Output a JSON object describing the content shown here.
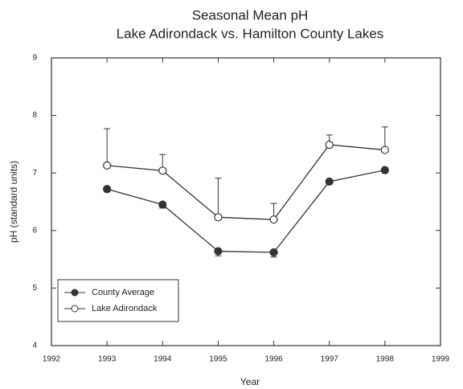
{
  "chart_data": {
    "type": "line",
    "title": "Seasonal Mean pH",
    "subtitle": "Lake Adirondack vs. Hamilton County Lakes",
    "x_label": "Year",
    "y_label": "pH (standard units)",
    "x": [
      1993,
      1994,
      1995,
      1996,
      1997,
      1998
    ],
    "xlim": [
      1992,
      1999
    ],
    "xticks": [
      1992,
      1993,
      1994,
      1995,
      1996,
      1997,
      1998,
      1999
    ],
    "ylim": [
      4,
      9
    ],
    "yticks": [
      4,
      5,
      6,
      7,
      8,
      9
    ],
    "legend": "lower left",
    "series": [
      {
        "name": "County Average",
        "color": "#333333",
        "marker": "filled",
        "error_side": "down",
        "values": [
          6.72,
          6.45,
          5.64,
          5.62,
          6.85,
          7.05
        ],
        "errors": [
          0.05,
          0.06,
          0.08,
          0.08,
          0.04,
          0.05
        ]
      },
      {
        "name": "Lake Adirondack",
        "color": "#333333",
        "marker": "open",
        "error_side": "up",
        "values": [
          7.13,
          7.04,
          6.23,
          6.19,
          7.49,
          7.4
        ],
        "errors": [
          0.64,
          0.28,
          0.68,
          0.28,
          0.17,
          0.4
        ]
      }
    ]
  }
}
